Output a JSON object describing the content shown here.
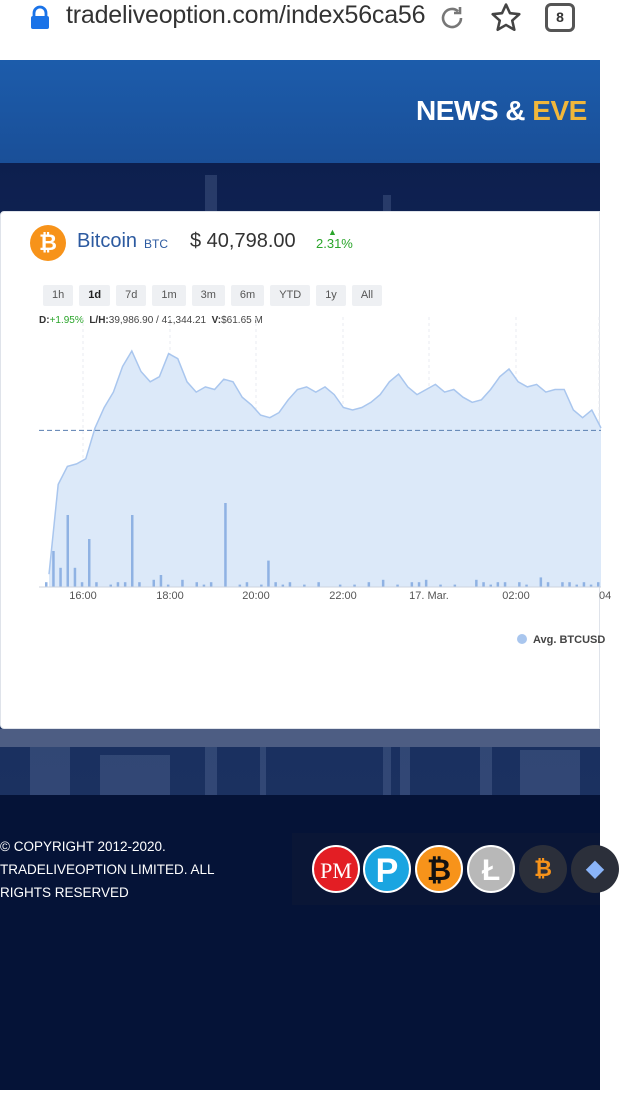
{
  "browser": {
    "url": "tradeliveoption.com/index56ca56",
    "tab_count": "8",
    "icons": [
      "lock-icon",
      "reload-icon",
      "star-icon",
      "tabs-icon"
    ]
  },
  "header": {
    "title_main": "NEWS & ",
    "title_accent": "EVE"
  },
  "widget": {
    "coin_name": "Bitcoin",
    "coin_symbol": "BTC",
    "price": "$ 40,798.00",
    "change": "2.31%",
    "periods": [
      "1h",
      "1d",
      "7d",
      "1m",
      "3m",
      "6m",
      "YTD",
      "1y",
      "All"
    ],
    "active_period": "1d",
    "stats": {
      "d_label": "D:",
      "d_value": "+1.95%",
      "lh_label": "L/H:",
      "lh_value": "39,986.90 / 41,344.21",
      "v_label": "V:",
      "v_value": "$61.65 M"
    },
    "legend": "Avg. BTCUSD"
  },
  "chart_data": {
    "type": "area",
    "x_tick_labels": [
      "16:00",
      "18:00",
      "20:00",
      "22:00",
      "17. Mar.",
      "02:00",
      "04"
    ],
    "series": [
      {
        "name": "Avg. BTCUSD",
        "values": [
          0.05,
          0.4,
          0.47,
          0.48,
          0.5,
          0.62,
          0.7,
          0.76,
          0.86,
          0.92,
          0.84,
          0.8,
          0.82,
          0.91,
          0.89,
          0.8,
          0.76,
          0.78,
          0.77,
          0.81,
          0.8,
          0.74,
          0.71,
          0.67,
          0.66,
          0.68,
          0.73,
          0.77,
          0.78,
          0.76,
          0.78,
          0.75,
          0.7,
          0.69,
          0.7,
          0.72,
          0.75,
          0.8,
          0.83,
          0.78,
          0.75,
          0.77,
          0.79,
          0.76,
          0.77,
          0.74,
          0.72,
          0.73,
          0.77,
          0.82,
          0.85,
          0.8,
          0.78,
          0.79,
          0.76,
          0.77,
          0.77,
          0.69,
          0.66,
          0.69,
          0.62
        ],
        "color": "#a9c6ee"
      }
    ],
    "volume": [
      0.02,
      0.15,
      0.08,
      0.3,
      0.08,
      0.02,
      0.2,
      0.02,
      0,
      0.01,
      0.02,
      0.02,
      0.3,
      0.02,
      0,
      0.03,
      0.05,
      0.01,
      0,
      0.03,
      0,
      0.02,
      0.01,
      0.02,
      0,
      0.35,
      0,
      0.01,
      0.02,
      0,
      0.01,
      0.11,
      0.02,
      0.01,
      0.02,
      0,
      0.01,
      0,
      0.02,
      0,
      0,
      0.01,
      0,
      0.01,
      0,
      0.02,
      0,
      0.03,
      0,
      0.01,
      0,
      0.02,
      0.02,
      0.03,
      0,
      0.01,
      0,
      0.01,
      0,
      0,
      0.03,
      0.02,
      0.01,
      0.02,
      0.02,
      0,
      0.02,
      0.01,
      0,
      0.04,
      0.02,
      0,
      0.02,
      0.02,
      0.01,
      0.02,
      0.01,
      0.02
    ],
    "baseline_fraction": 0.58,
    "grid": true
  },
  "footer": {
    "copyright_lines": [
      "© COPYRIGHT 2012-2020.",
      "TRADELIVEOPTION LIMITED. ALL",
      "RIGHTS RESERVED"
    ],
    "payment_icons": [
      "perfect-money-icon",
      "payeer-icon",
      "bitcoin-icon",
      "litecoin-icon",
      "bitcoin-cash-icon",
      "ethereum-icon"
    ],
    "pm_label": "PM",
    "payeer_label": "P",
    "btc_label": "₿",
    "ltc_label": "Ł",
    "eth_label": "◆"
  }
}
